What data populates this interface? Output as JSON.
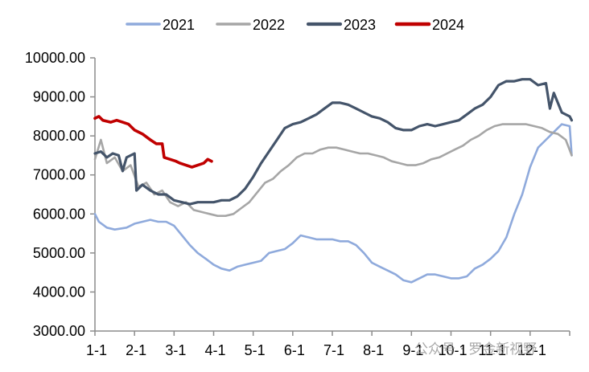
{
  "chart_data": {
    "type": "line",
    "title": "",
    "xlabel": "",
    "ylabel": "",
    "ylim": [
      3000,
      10000
    ],
    "yticks": [
      "3000.00",
      "4000.00",
      "5000.00",
      "6000.00",
      "7000.00",
      "8000.00",
      "9000.00",
      "10000.00"
    ],
    "ytick_values": [
      3000,
      4000,
      5000,
      6000,
      7000,
      8000,
      9000,
      10000
    ],
    "xlim": [
      0,
      12
    ],
    "xticks": [
      "1-1",
      "2-1",
      "3-1",
      "4-1",
      "5-1",
      "6-1",
      "7-1",
      "8-1",
      "9-1",
      "10-1",
      "11-1",
      "12-1"
    ],
    "grid": false,
    "legend_position": "top",
    "series": [
      {
        "name": "2021",
        "color": "#8faadc",
        "width": 2.6,
        "points": [
          [
            0.0,
            6000
          ],
          [
            0.1,
            5800
          ],
          [
            0.3,
            5650
          ],
          [
            0.5,
            5600
          ],
          [
            0.8,
            5650
          ],
          [
            1.0,
            5750
          ],
          [
            1.2,
            5800
          ],
          [
            1.4,
            5850
          ],
          [
            1.6,
            5800
          ],
          [
            1.8,
            5800
          ],
          [
            2.0,
            5700
          ],
          [
            2.2,
            5450
          ],
          [
            2.4,
            5200
          ],
          [
            2.6,
            5000
          ],
          [
            2.8,
            4850
          ],
          [
            3.0,
            4700
          ],
          [
            3.2,
            4600
          ],
          [
            3.4,
            4550
          ],
          [
            3.6,
            4650
          ],
          [
            3.8,
            4700
          ],
          [
            4.0,
            4750
          ],
          [
            4.2,
            4800
          ],
          [
            4.4,
            5000
          ],
          [
            4.6,
            5050
          ],
          [
            4.8,
            5100
          ],
          [
            5.0,
            5250
          ],
          [
            5.2,
            5450
          ],
          [
            5.4,
            5400
          ],
          [
            5.6,
            5350
          ],
          [
            5.8,
            5350
          ],
          [
            6.0,
            5350
          ],
          [
            6.2,
            5300
          ],
          [
            6.4,
            5300
          ],
          [
            6.6,
            5200
          ],
          [
            6.8,
            5000
          ],
          [
            7.0,
            4750
          ],
          [
            7.2,
            4650
          ],
          [
            7.4,
            4550
          ],
          [
            7.6,
            4450
          ],
          [
            7.8,
            4300
          ],
          [
            8.0,
            4250
          ],
          [
            8.2,
            4350
          ],
          [
            8.4,
            4450
          ],
          [
            8.6,
            4450
          ],
          [
            8.8,
            4400
          ],
          [
            9.0,
            4350
          ],
          [
            9.2,
            4350
          ],
          [
            9.4,
            4400
          ],
          [
            9.6,
            4600
          ],
          [
            9.8,
            4700
          ],
          [
            10.0,
            4850
          ],
          [
            10.2,
            5050
          ],
          [
            10.4,
            5400
          ],
          [
            10.6,
            6000
          ],
          [
            10.8,
            6500
          ],
          [
            11.0,
            7200
          ],
          [
            11.2,
            7700
          ],
          [
            11.4,
            7900
          ],
          [
            11.6,
            8100
          ],
          [
            11.8,
            8300
          ],
          [
            12.0,
            8250
          ],
          [
            12.05,
            7500
          ]
        ]
      },
      {
        "name": "2022",
        "color": "#a6a6a6",
        "width": 2.6,
        "points": [
          [
            0.0,
            7400
          ],
          [
            0.15,
            7900
          ],
          [
            0.3,
            7300
          ],
          [
            0.5,
            7450
          ],
          [
            0.7,
            7100
          ],
          [
            0.9,
            7250
          ],
          [
            1.1,
            6700
          ],
          [
            1.3,
            6800
          ],
          [
            1.5,
            6500
          ],
          [
            1.7,
            6600
          ],
          [
            1.9,
            6300
          ],
          [
            2.1,
            6200
          ],
          [
            2.3,
            6300
          ],
          [
            2.5,
            6100
          ],
          [
            2.7,
            6050
          ],
          [
            2.9,
            6000
          ],
          [
            3.1,
            5950
          ],
          [
            3.3,
            5950
          ],
          [
            3.5,
            6000
          ],
          [
            3.7,
            6150
          ],
          [
            3.9,
            6300
          ],
          [
            4.1,
            6550
          ],
          [
            4.3,
            6800
          ],
          [
            4.5,
            6900
          ],
          [
            4.7,
            7100
          ],
          [
            4.9,
            7250
          ],
          [
            5.1,
            7450
          ],
          [
            5.3,
            7550
          ],
          [
            5.5,
            7550
          ],
          [
            5.7,
            7650
          ],
          [
            5.9,
            7700
          ],
          [
            6.1,
            7700
          ],
          [
            6.3,
            7650
          ],
          [
            6.5,
            7600
          ],
          [
            6.7,
            7550
          ],
          [
            6.9,
            7550
          ],
          [
            7.1,
            7500
          ],
          [
            7.3,
            7450
          ],
          [
            7.5,
            7350
          ],
          [
            7.7,
            7300
          ],
          [
            7.9,
            7250
          ],
          [
            8.1,
            7250
          ],
          [
            8.3,
            7300
          ],
          [
            8.5,
            7400
          ],
          [
            8.7,
            7450
          ],
          [
            8.9,
            7550
          ],
          [
            9.1,
            7650
          ],
          [
            9.3,
            7750
          ],
          [
            9.5,
            7900
          ],
          [
            9.7,
            8000
          ],
          [
            9.9,
            8150
          ],
          [
            10.1,
            8250
          ],
          [
            10.3,
            8300
          ],
          [
            10.5,
            8300
          ],
          [
            10.7,
            8300
          ],
          [
            10.9,
            8300
          ],
          [
            11.1,
            8250
          ],
          [
            11.3,
            8200
          ],
          [
            11.5,
            8100
          ],
          [
            11.7,
            8050
          ],
          [
            11.9,
            7900
          ],
          [
            12.05,
            7500
          ]
        ]
      },
      {
        "name": "2023",
        "color": "#44546a",
        "width": 3.2,
        "points": [
          [
            0.0,
            7550
          ],
          [
            0.15,
            7600
          ],
          [
            0.3,
            7450
          ],
          [
            0.45,
            7550
          ],
          [
            0.6,
            7500
          ],
          [
            0.7,
            7100
          ],
          [
            0.8,
            7450
          ],
          [
            1.0,
            7550
          ],
          [
            1.05,
            6600
          ],
          [
            1.2,
            6750
          ],
          [
            1.4,
            6600
          ],
          [
            1.6,
            6500
          ],
          [
            1.8,
            6500
          ],
          [
            2.0,
            6350
          ],
          [
            2.2,
            6300
          ],
          [
            2.4,
            6250
          ],
          [
            2.6,
            6300
          ],
          [
            2.8,
            6300
          ],
          [
            3.0,
            6300
          ],
          [
            3.2,
            6350
          ],
          [
            3.4,
            6350
          ],
          [
            3.6,
            6450
          ],
          [
            3.8,
            6650
          ],
          [
            4.0,
            6950
          ],
          [
            4.2,
            7300
          ],
          [
            4.4,
            7600
          ],
          [
            4.6,
            7900
          ],
          [
            4.8,
            8200
          ],
          [
            5.0,
            8300
          ],
          [
            5.2,
            8350
          ],
          [
            5.4,
            8450
          ],
          [
            5.6,
            8550
          ],
          [
            5.8,
            8700
          ],
          [
            6.0,
            8850
          ],
          [
            6.2,
            8850
          ],
          [
            6.4,
            8800
          ],
          [
            6.6,
            8700
          ],
          [
            6.8,
            8600
          ],
          [
            7.0,
            8500
          ],
          [
            7.2,
            8450
          ],
          [
            7.4,
            8350
          ],
          [
            7.6,
            8200
          ],
          [
            7.8,
            8150
          ],
          [
            8.0,
            8150
          ],
          [
            8.2,
            8250
          ],
          [
            8.4,
            8300
          ],
          [
            8.6,
            8250
          ],
          [
            8.8,
            8300
          ],
          [
            9.0,
            8350
          ],
          [
            9.2,
            8400
          ],
          [
            9.4,
            8550
          ],
          [
            9.6,
            8700
          ],
          [
            9.8,
            8800
          ],
          [
            10.0,
            9000
          ],
          [
            10.2,
            9300
          ],
          [
            10.4,
            9400
          ],
          [
            10.6,
            9400
          ],
          [
            10.8,
            9450
          ],
          [
            11.0,
            9450
          ],
          [
            11.2,
            9300
          ],
          [
            11.4,
            9350
          ],
          [
            11.5,
            8700
          ],
          [
            11.6,
            9100
          ],
          [
            11.8,
            8600
          ],
          [
            12.0,
            8500
          ],
          [
            12.05,
            8400
          ]
        ]
      },
      {
        "name": "2024",
        "color": "#c00000",
        "width": 3.6,
        "points": [
          [
            0.0,
            8450
          ],
          [
            0.1,
            8500
          ],
          [
            0.2,
            8400
          ],
          [
            0.4,
            8350
          ],
          [
            0.55,
            8400
          ],
          [
            0.7,
            8350
          ],
          [
            0.85,
            8300
          ],
          [
            1.0,
            8150
          ],
          [
            1.2,
            8050
          ],
          [
            1.4,
            7900
          ],
          [
            1.55,
            7800
          ],
          [
            1.7,
            7800
          ],
          [
            1.75,
            7450
          ],
          [
            1.9,
            7400
          ],
          [
            2.05,
            7350
          ],
          [
            2.15,
            7300
          ],
          [
            2.3,
            7250
          ],
          [
            2.45,
            7200
          ],
          [
            2.6,
            7250
          ],
          [
            2.75,
            7300
          ],
          [
            2.85,
            7400
          ],
          [
            2.95,
            7350
          ]
        ]
      }
    ]
  },
  "watermark": {
    "text": "公众号 · 罗金新视野"
  }
}
